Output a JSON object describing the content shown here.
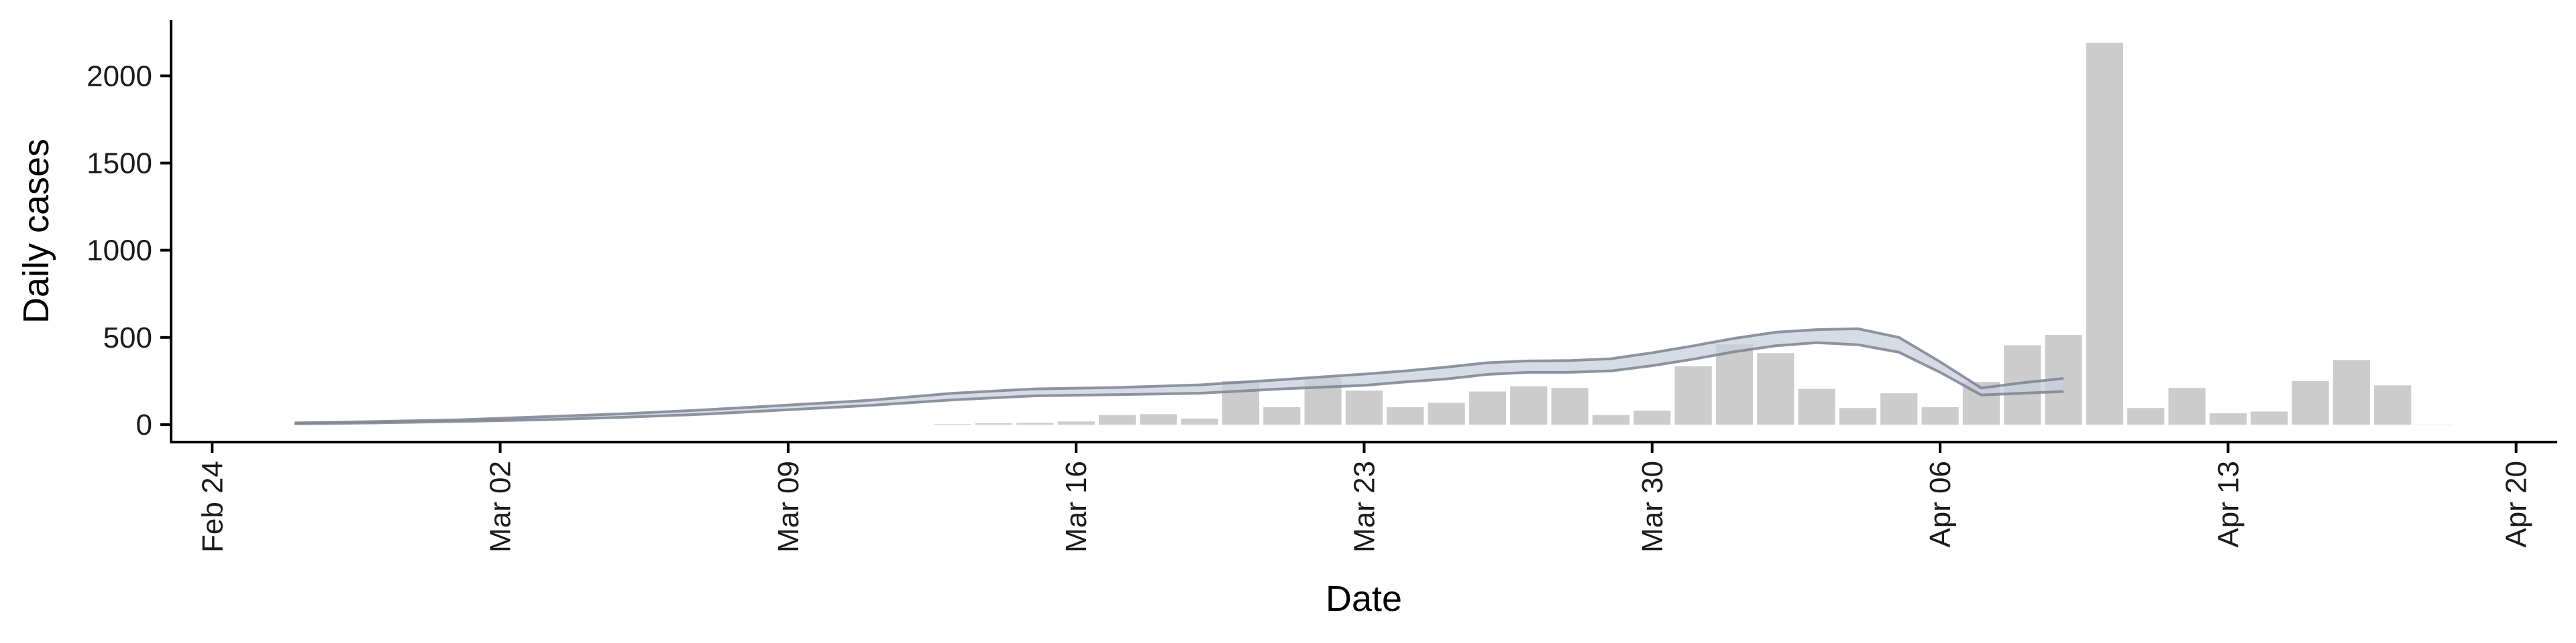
{
  "chart_data": {
    "type": "bar",
    "xlabel": "Date",
    "ylabel": "Daily cases",
    "x_tick_labels": [
      "Feb 24",
      "Mar 02",
      "Mar 09",
      "Mar 16",
      "Mar 23",
      "Mar 30",
      "Apr 06",
      "Apr 13",
      "Apr 20"
    ],
    "y_tick_labels": [
      "0",
      "500",
      "1000",
      "1500",
      "2000"
    ],
    "y_ticks": [
      0,
      500,
      1000,
      1500,
      2000
    ],
    "ylim": [
      -100,
      2320
    ],
    "xlim": [
      "2020-02-23",
      "2020-04-21"
    ],
    "x_tick_dates": [
      "2020-02-24",
      "2020-03-02",
      "2020-03-09",
      "2020-03-16",
      "2020-03-23",
      "2020-03-30",
      "2020-04-06",
      "2020-04-13",
      "2020-04-20"
    ],
    "bars": {
      "color": "#cccccc",
      "dates": [
        "2020-03-13",
        "2020-03-14",
        "2020-03-15",
        "2020-03-16",
        "2020-03-17",
        "2020-03-18",
        "2020-03-19",
        "2020-03-20",
        "2020-03-21",
        "2020-03-22",
        "2020-03-23",
        "2020-03-24",
        "2020-03-25",
        "2020-03-26",
        "2020-03-27",
        "2020-03-28",
        "2020-03-29",
        "2020-03-30",
        "2020-03-31",
        "2020-04-01",
        "2020-04-02",
        "2020-04-03",
        "2020-04-04",
        "2020-04-05",
        "2020-04-06",
        "2020-04-07",
        "2020-04-08",
        "2020-04-09",
        "2020-04-10",
        "2020-04-11",
        "2020-04-12",
        "2020-04-13",
        "2020-04-14",
        "2020-04-15",
        "2020-04-16",
        "2020-04-17",
        "2020-04-18"
      ],
      "values": [
        3,
        8,
        10,
        18,
        55,
        60,
        35,
        250,
        100,
        270,
        195,
        100,
        125,
        190,
        220,
        210,
        55,
        80,
        335,
        460,
        410,
        205,
        95,
        180,
        100,
        245,
        455,
        515,
        2190,
        95,
        210,
        65,
        75,
        250,
        370,
        225,
        0
      ]
    },
    "series": [
      {
        "role": "estimate-band",
        "band_color": "#c9cfde",
        "edge_color": "#7e8290",
        "dates": [
          "2020-02-26",
          "2020-02-28",
          "2020-03-01",
          "2020-03-03",
          "2020-03-05",
          "2020-03-07",
          "2020-03-09",
          "2020-03-11",
          "2020-03-13",
          "2020-03-15",
          "2020-03-17",
          "2020-03-19",
          "2020-03-21",
          "2020-03-23",
          "2020-03-24",
          "2020-03-25",
          "2020-03-26",
          "2020-03-27",
          "2020-03-28",
          "2020-03-29",
          "2020-03-30",
          "2020-03-31",
          "2020-04-01",
          "2020-04-02",
          "2020-04-03",
          "2020-04-04",
          "2020-04-05",
          "2020-04-06",
          "2020-04-07",
          "2020-04-08",
          "2020-04-09"
        ],
        "upper": [
          10,
          18,
          28,
          45,
          62,
          85,
          112,
          140,
          180,
          205,
          213,
          228,
          258,
          290,
          308,
          330,
          355,
          365,
          368,
          378,
          412,
          452,
          495,
          530,
          545,
          550,
          500,
          360,
          210,
          240,
          265
        ],
        "lower": [
          5,
          10,
          18,
          28,
          42,
          60,
          85,
          110,
          142,
          165,
          172,
          180,
          205,
          225,
          245,
          262,
          288,
          300,
          300,
          308,
          338,
          375,
          418,
          452,
          470,
          458,
          415,
          300,
          170,
          180,
          190
        ]
      }
    ]
  }
}
